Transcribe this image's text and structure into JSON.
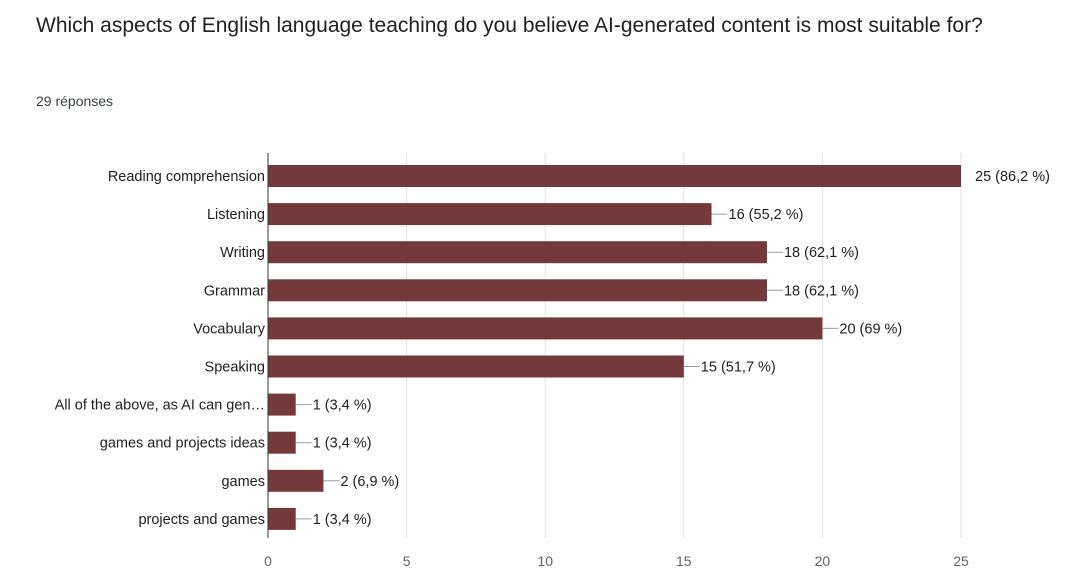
{
  "question": {
    "title": "Which aspects of English language teaching do you believe AI-generated content is most suitable for?",
    "response_count": "29 réponses"
  },
  "colors": {
    "bar": "#74393b",
    "axis": "#333333",
    "gridline": "#e0e0e0",
    "leader_line": "#9e9e9e"
  },
  "chart_data": {
    "type": "bar",
    "orientation": "horizontal",
    "categories": [
      "Reading comprehension",
      "Listening",
      "Writing",
      "Grammar",
      "Vocabulary",
      "Speaking",
      "All of the above, as AI can gen…",
      "games and projects ideas",
      "games",
      "projects and games"
    ],
    "values": [
      25,
      16,
      18,
      18,
      20,
      15,
      1,
      1,
      2,
      1
    ],
    "data_labels": [
      "25 (86,2 %)",
      "16 (55,2 %)",
      "18 (62,1 %)",
      "18 (62,1 %)",
      "20 (69 %)",
      "15 (51,7 %)",
      "1 (3,4 %)",
      "1 (3,4 %)",
      "2 (6,9 %)",
      "1 (3,4 %)"
    ],
    "xlim": [
      0,
      25
    ],
    "xticks": [
      0,
      5,
      10,
      15,
      20,
      25
    ],
    "grid": true
  }
}
